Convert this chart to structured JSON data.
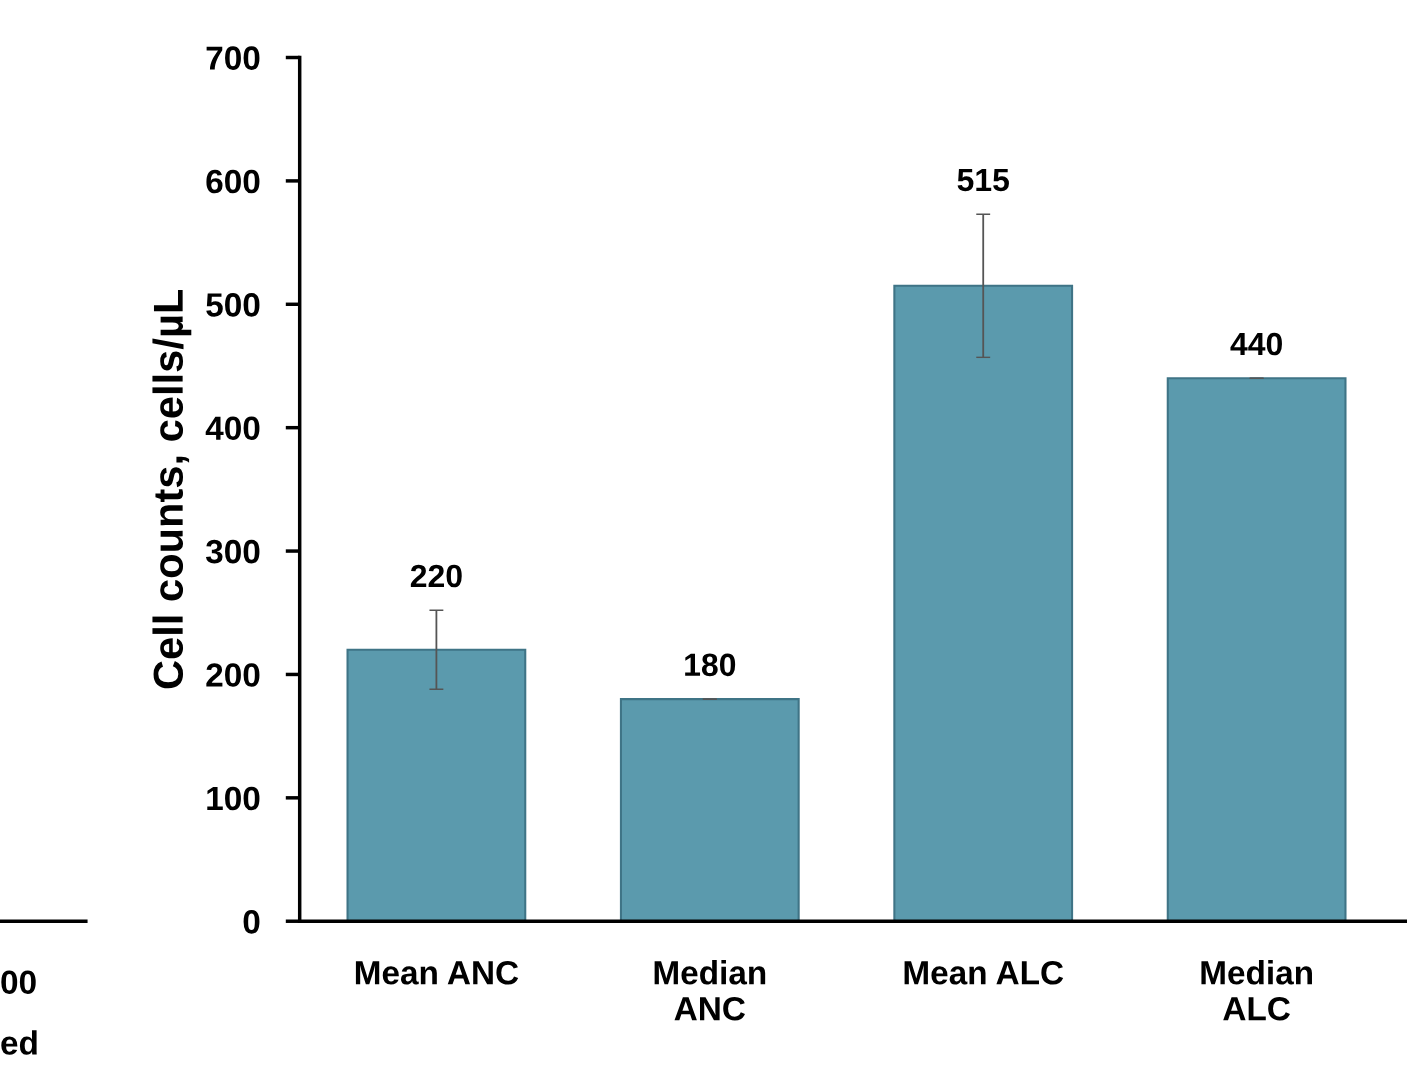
{
  "chart_data": {
    "type": "bar",
    "ylabel": "Cell counts, cells/µL",
    "categories": [
      "Mean ANC",
      "Median\nANC",
      "Mean ALC",
      "Median\nALC"
    ],
    "values": [
      220,
      180,
      515,
      440
    ],
    "errors": [
      32,
      0,
      58,
      0
    ],
    "color": "#5b9aad",
    "ylim": [
      0,
      700
    ],
    "yticks": [
      0,
      100,
      200,
      300,
      400,
      500,
      600,
      700
    ],
    "data_labels": true,
    "grid": false,
    "legend": false,
    "annotations": [
      "00",
      "ed"
    ]
  }
}
